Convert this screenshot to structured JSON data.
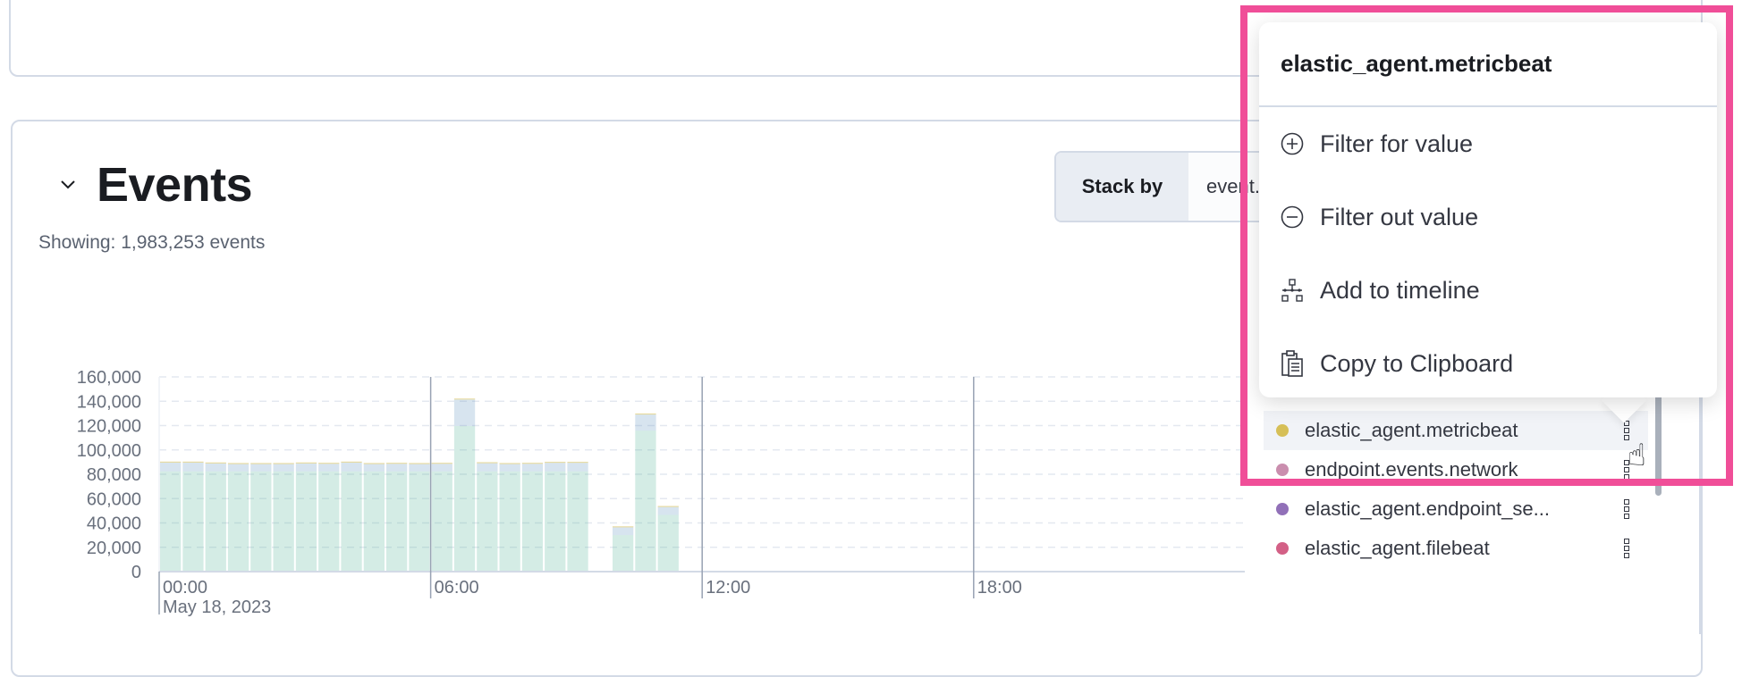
{
  "events": {
    "title": "Events",
    "showing": "Showing: 1,983,253 events",
    "stack_by_label": "Stack by",
    "stack_by_value": "event.dataset"
  },
  "legend": {
    "items": [
      {
        "label": "elastic_agent.metricbeat",
        "color": "#D6BF57",
        "highlighted": true
      },
      {
        "label": "endpoint.events.network",
        "color": "#CA8EAE"
      },
      {
        "label": "elastic_agent.endpoint_se...",
        "color": "#9170B8"
      },
      {
        "label": "elastic_agent.filebeat",
        "color": "#D36086"
      }
    ]
  },
  "popover": {
    "title": "elastic_agent.metricbeat",
    "items": [
      {
        "label": "Filter for value",
        "icon": "plus-in-circle-icon"
      },
      {
        "label": "Filter out value",
        "icon": "minus-in-circle-icon"
      },
      {
        "label": "Add to timeline",
        "icon": "timeline-icon"
      },
      {
        "label": "Copy to Clipboard",
        "icon": "clipboard-icon"
      }
    ]
  },
  "highlight_color": "#F04E98",
  "chart_data": {
    "type": "bar",
    "stacked": true,
    "x": [
      "00:00",
      "00:30",
      "01:00",
      "01:30",
      "02:00",
      "02:30",
      "03:00",
      "03:30",
      "04:00",
      "04:30",
      "05:00",
      "05:30",
      "06:00",
      "06:30",
      "07:00",
      "07:30",
      "08:00",
      "08:30",
      "09:00",
      "10:00",
      "10:30",
      "11:00"
    ],
    "series": [
      {
        "color": "#54B399",
        "values": [
          82300,
          82300,
          82300,
          82300,
          82300,
          82300,
          82300,
          82300,
          82300,
          82300,
          82300,
          82300,
          82300,
          119600,
          82300,
          82300,
          82300,
          82300,
          82300,
          30000,
          115900,
          46600
        ]
      },
      {
        "color": "#6092C0",
        "values": [
          7300,
          7300,
          6600,
          6100,
          6100,
          6100,
          6600,
          6300,
          7300,
          6100,
          6300,
          6100,
          6300,
          21800,
          6800,
          6100,
          6300,
          7100,
          7100,
          6400,
          13200,
          6500
        ]
      },
      {
        "color": "#D6BF57",
        "values": [
          800,
          800,
          800,
          800,
          800,
          800,
          800,
          800,
          800,
          800,
          800,
          800,
          800,
          800,
          800,
          800,
          800,
          800,
          800,
          800,
          800,
          800
        ]
      }
    ],
    "ylim": [
      0,
      160000
    ],
    "yticks": [
      "0",
      "20,000",
      "40,000",
      "60,000",
      "80,000",
      "100,000",
      "120,000",
      "140,000",
      "160,000"
    ],
    "xticks": [
      "00:00",
      "06:00",
      "12:00",
      "18:00"
    ],
    "x_sublabel": "May 18, 2023",
    "grid": true
  }
}
